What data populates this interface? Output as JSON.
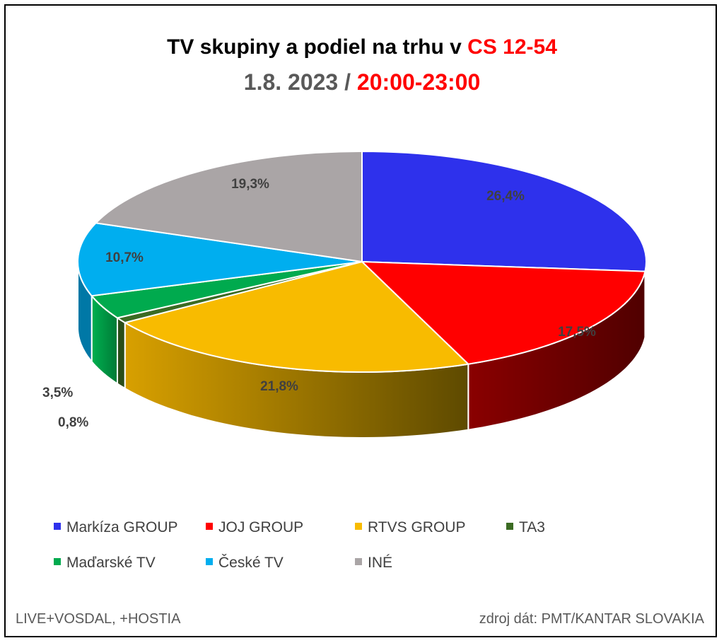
{
  "title": {
    "line1_prefix": "TV skupiny a podiel na trhu v ",
    "line1_highlight": "CS 12-54",
    "line2_prefix": "1.8. 2023 / ",
    "line2_highlight": "20:00-23:00"
  },
  "footer": {
    "left": "LIVE+VOSDAL, +HOSTIA",
    "right": "zdroj dát: PMT/KANTAR SLOVAKIA"
  },
  "chart_data": {
    "type": "pie",
    "style": "3d",
    "legend_position": "bottom",
    "slices": [
      {
        "name": "Markíza GROUP",
        "value": 26.4,
        "label": "26,4%",
        "color": "#2e31ec"
      },
      {
        "name": "JOJ GROUP",
        "value": 17.5,
        "label": "17,5%",
        "color": "#ff0000"
      },
      {
        "name": "RTVS GROUP",
        "value": 21.8,
        "label": "21,8%",
        "color": "#f8bb00"
      },
      {
        "name": "TA3",
        "value": 0.8,
        "label": "0,8%",
        "color": "#3b6b23"
      },
      {
        "name": "Maďarské  TV",
        "value": 3.5,
        "label": "3,5%",
        "color": "#00aa4e"
      },
      {
        "name": "České  TV",
        "value": 10.7,
        "label": "10,7%",
        "color": "#00aeef"
      },
      {
        "name": "INÉ",
        "value": 19.3,
        "label": "19,3%",
        "color": "#aaa5a6"
      }
    ]
  }
}
